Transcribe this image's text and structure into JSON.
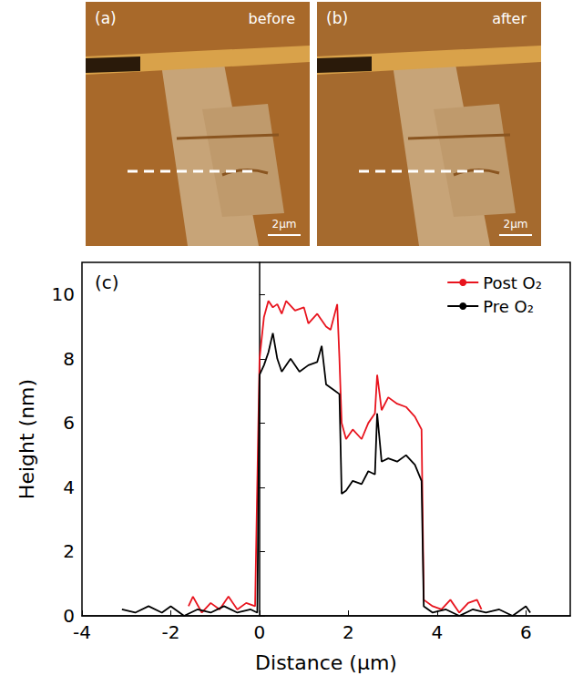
{
  "images": [
    {
      "label": "(a)",
      "caption": "before",
      "scale_bar": "2μm"
    },
    {
      "label": "(b)",
      "caption": "after",
      "scale_bar": "2μm"
    }
  ],
  "chart_data": {
    "type": "line",
    "title": "(c)",
    "x_label": "Distance (μm)",
    "y_label": "Height (nm)",
    "xlim": [
      -4,
      7
    ],
    "xticks": [
      -4,
      -2,
      0,
      2,
      4,
      6
    ],
    "ylim": [
      0,
      11
    ],
    "yticks": [
      0,
      2,
      4,
      6,
      8,
      10
    ],
    "grid": false,
    "legend": "top-right",
    "series": [
      {
        "name": "Post O₂",
        "color": "#e8141e",
        "x": [
          -1.6,
          -1.5,
          -1.3,
          -1.1,
          -0.9,
          -0.7,
          -0.5,
          -0.3,
          -0.1,
          0.0,
          0.1,
          0.2,
          0.3,
          0.4,
          0.5,
          0.6,
          0.8,
          1.0,
          1.1,
          1.3,
          1.5,
          1.6,
          1.75,
          1.8,
          1.85,
          1.95,
          2.1,
          2.3,
          2.45,
          2.6,
          2.65,
          2.75,
          2.9,
          3.1,
          3.3,
          3.5,
          3.65,
          3.7,
          3.9,
          4.1,
          4.3,
          4.5,
          4.7,
          4.9,
          5.0
        ],
        "values": [
          0.3,
          0.6,
          0.1,
          0.4,
          0.2,
          0.6,
          0.2,
          0.4,
          0.3,
          8.0,
          9.3,
          9.8,
          9.6,
          9.7,
          9.4,
          9.8,
          9.5,
          9.6,
          9.1,
          9.4,
          9.0,
          8.9,
          9.7,
          8.0,
          6.0,
          5.5,
          5.8,
          5.5,
          6.0,
          6.3,
          7.5,
          6.4,
          6.8,
          6.6,
          6.5,
          6.2,
          5.8,
          0.5,
          0.3,
          0.2,
          0.5,
          0.1,
          0.4,
          0.5,
          0.2
        ]
      },
      {
        "name": "Pre O₂",
        "color": "#000000",
        "x": [
          -3.1,
          -2.8,
          -2.5,
          -2.2,
          -2.0,
          -1.7,
          -1.4,
          -1.1,
          -0.8,
          -0.5,
          -0.2,
          -0.05,
          0.0,
          0.1,
          0.2,
          0.3,
          0.4,
          0.5,
          0.7,
          0.9,
          1.1,
          1.3,
          1.4,
          1.5,
          1.7,
          1.8,
          1.85,
          1.95,
          2.1,
          2.3,
          2.45,
          2.6,
          2.65,
          2.75,
          2.9,
          3.1,
          3.3,
          3.5,
          3.65,
          3.7,
          3.9,
          4.2,
          4.5,
          4.8,
          5.1,
          5.4,
          5.7,
          6.0,
          6.1
        ],
        "values": [
          0.2,
          0.1,
          0.3,
          0.1,
          0.3,
          0.0,
          0.2,
          0.1,
          0.3,
          0.1,
          0.2,
          0.1,
          7.5,
          7.8,
          8.2,
          8.8,
          8.0,
          7.6,
          8.0,
          7.6,
          7.8,
          7.9,
          8.4,
          7.2,
          7.0,
          6.9,
          3.8,
          3.9,
          4.2,
          4.1,
          4.5,
          4.4,
          6.3,
          4.8,
          4.9,
          4.8,
          5.0,
          4.7,
          4.2,
          0.3,
          0.1,
          0.2,
          0.0,
          0.2,
          0.1,
          0.2,
          0.0,
          0.3,
          0.1
        ]
      }
    ]
  }
}
